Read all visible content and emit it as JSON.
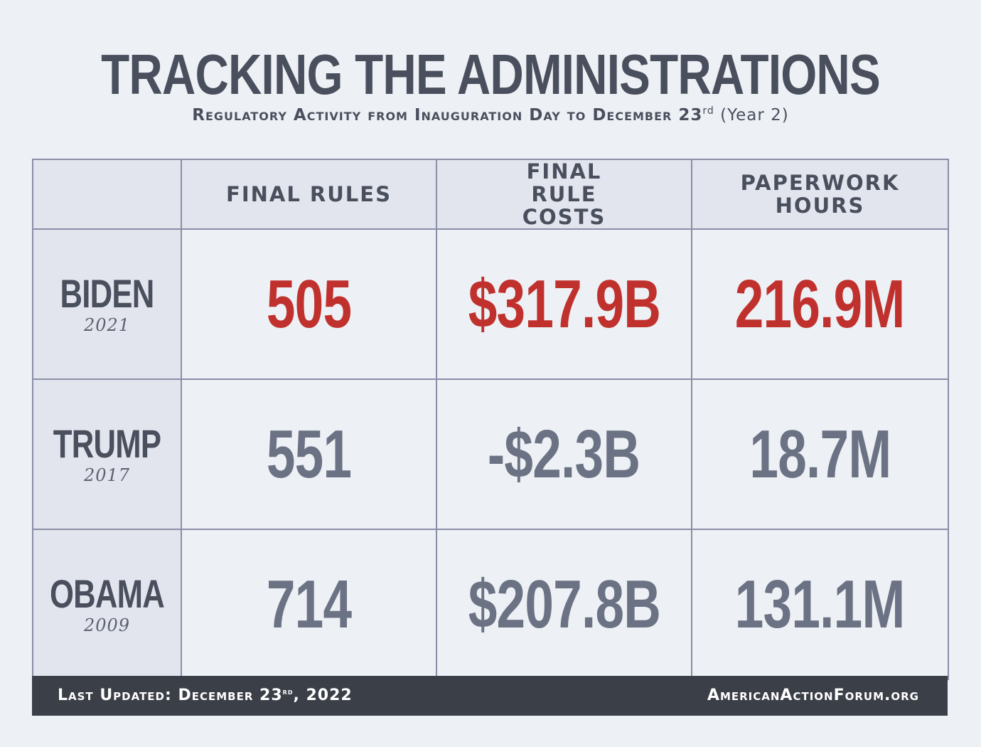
{
  "title": "TRACKING THE ADMINISTRATIONS",
  "subtitle": {
    "main": "Regulatory Activity from Inauguration Day to December 23",
    "superscript": "rd",
    "suffix": " (Year 2)"
  },
  "chart_data": {
    "type": "table",
    "columns": [
      "",
      "FINAL RULES",
      "FINAL RULE COSTS",
      "PAPERWORK HOURS"
    ],
    "rows": [
      {
        "administration": "BIDEN",
        "year": "2021",
        "final_rules": "505",
        "final_rule_costs": "$317.9B",
        "paperwork_hours": "216.9M",
        "highlight": true
      },
      {
        "administration": "TRUMP",
        "year": "2017",
        "final_rules": "551",
        "final_rule_costs": "-$2.3B",
        "paperwork_hours": "18.7M",
        "highlight": false
      },
      {
        "administration": "OBAMA",
        "year": "2009",
        "final_rules": "714",
        "final_rule_costs": "$207.8B",
        "paperwork_hours": "131.1M",
        "highlight": false
      }
    ],
    "colors": {
      "highlight": "#c0312d",
      "normal": "#6b7284",
      "text": "#4a4f5e",
      "header_bg": "#e2e5ed",
      "border": "#8a8ea6"
    }
  },
  "footer": {
    "updated_prefix": "Last Updated: December 23",
    "updated_superscript": "rd",
    "updated_suffix": ", 2022",
    "source": "AmericanActionForum.org"
  }
}
